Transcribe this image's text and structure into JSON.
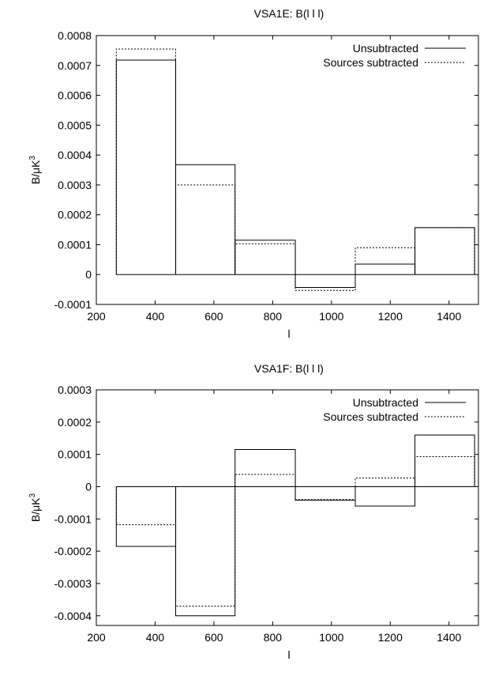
{
  "chart_data": [
    {
      "type": "bar",
      "title": "VSA1E: B(l l l)",
      "xlabel": "l",
      "ylabel": "B/μK",
      "ylabel_superscript": "3",
      "xlim": [
        200,
        1500
      ],
      "ylim": [
        -0.0001,
        0.0008
      ],
      "xticks": [
        200,
        400,
        600,
        800,
        1000,
        1200,
        1400
      ],
      "yticks": [
        -0.0001,
        0,
        0.0001,
        0.0002,
        0.0003,
        0.0004,
        0.0005,
        0.0006,
        0.0007,
        0.0008
      ],
      "ytick_labels": [
        "-0.0001",
        "0",
        "0.0001",
        "0.0002",
        "0.0003",
        "0.0004",
        "0.0005",
        "0.0006",
        "0.0007",
        "0.0008"
      ],
      "grid": false,
      "legend_position": "top-right",
      "bins": [
        [
          268,
          470
        ],
        [
          470,
          672
        ],
        [
          672,
          877
        ],
        [
          877,
          1081
        ],
        [
          1081,
          1284
        ],
        [
          1284,
          1487
        ]
      ],
      "series": [
        {
          "name": "Unsubtracted",
          "style": "solid",
          "values": [
            0.000718,
            0.000368,
            0.000115,
            -4.3e-05,
            3.5e-05,
            0.000157
          ]
        },
        {
          "name": "Sources subtracted",
          "style": "dotted",
          "values": [
            0.000755,
            0.0003,
            0.000103,
            -5.3e-05,
            9e-05,
            0.000157
          ]
        }
      ]
    },
    {
      "type": "bar",
      "title": "VSA1F: B(l l l)",
      "xlabel": "l",
      "ylabel": "B/μK",
      "ylabel_superscript": "3",
      "xlim": [
        200,
        1500
      ],
      "ylim": [
        -0.00043,
        0.0003
      ],
      "xticks": [
        200,
        400,
        600,
        800,
        1000,
        1200,
        1400
      ],
      "yticks": [
        -0.0004,
        -0.0003,
        -0.0002,
        -0.0001,
        0,
        0.0001,
        0.0002,
        0.0003
      ],
      "ytick_labels": [
        "-0.0004",
        "-0.0003",
        "-0.0002",
        "-0.0001",
        "0",
        "0.0001",
        "0.0002",
        "0.0003"
      ],
      "grid": false,
      "legend_position": "top-right",
      "bins": [
        [
          268,
          470
        ],
        [
          470,
          672
        ],
        [
          672,
          877
        ],
        [
          877,
          1081
        ],
        [
          1081,
          1284
        ],
        [
          1284,
          1487
        ]
      ],
      "series": [
        {
          "name": "Unsubtracted",
          "style": "solid",
          "values": [
            -0.000185,
            -0.0004,
            0.000115,
            -4.2e-05,
            -6e-05,
            0.00016
          ]
        },
        {
          "name": "Sources subtracted",
          "style": "dotted",
          "values": [
            -0.000118,
            -0.00037,
            3.8e-05,
            -4e-05,
            2.7e-05,
            9.3e-05
          ]
        }
      ]
    }
  ]
}
